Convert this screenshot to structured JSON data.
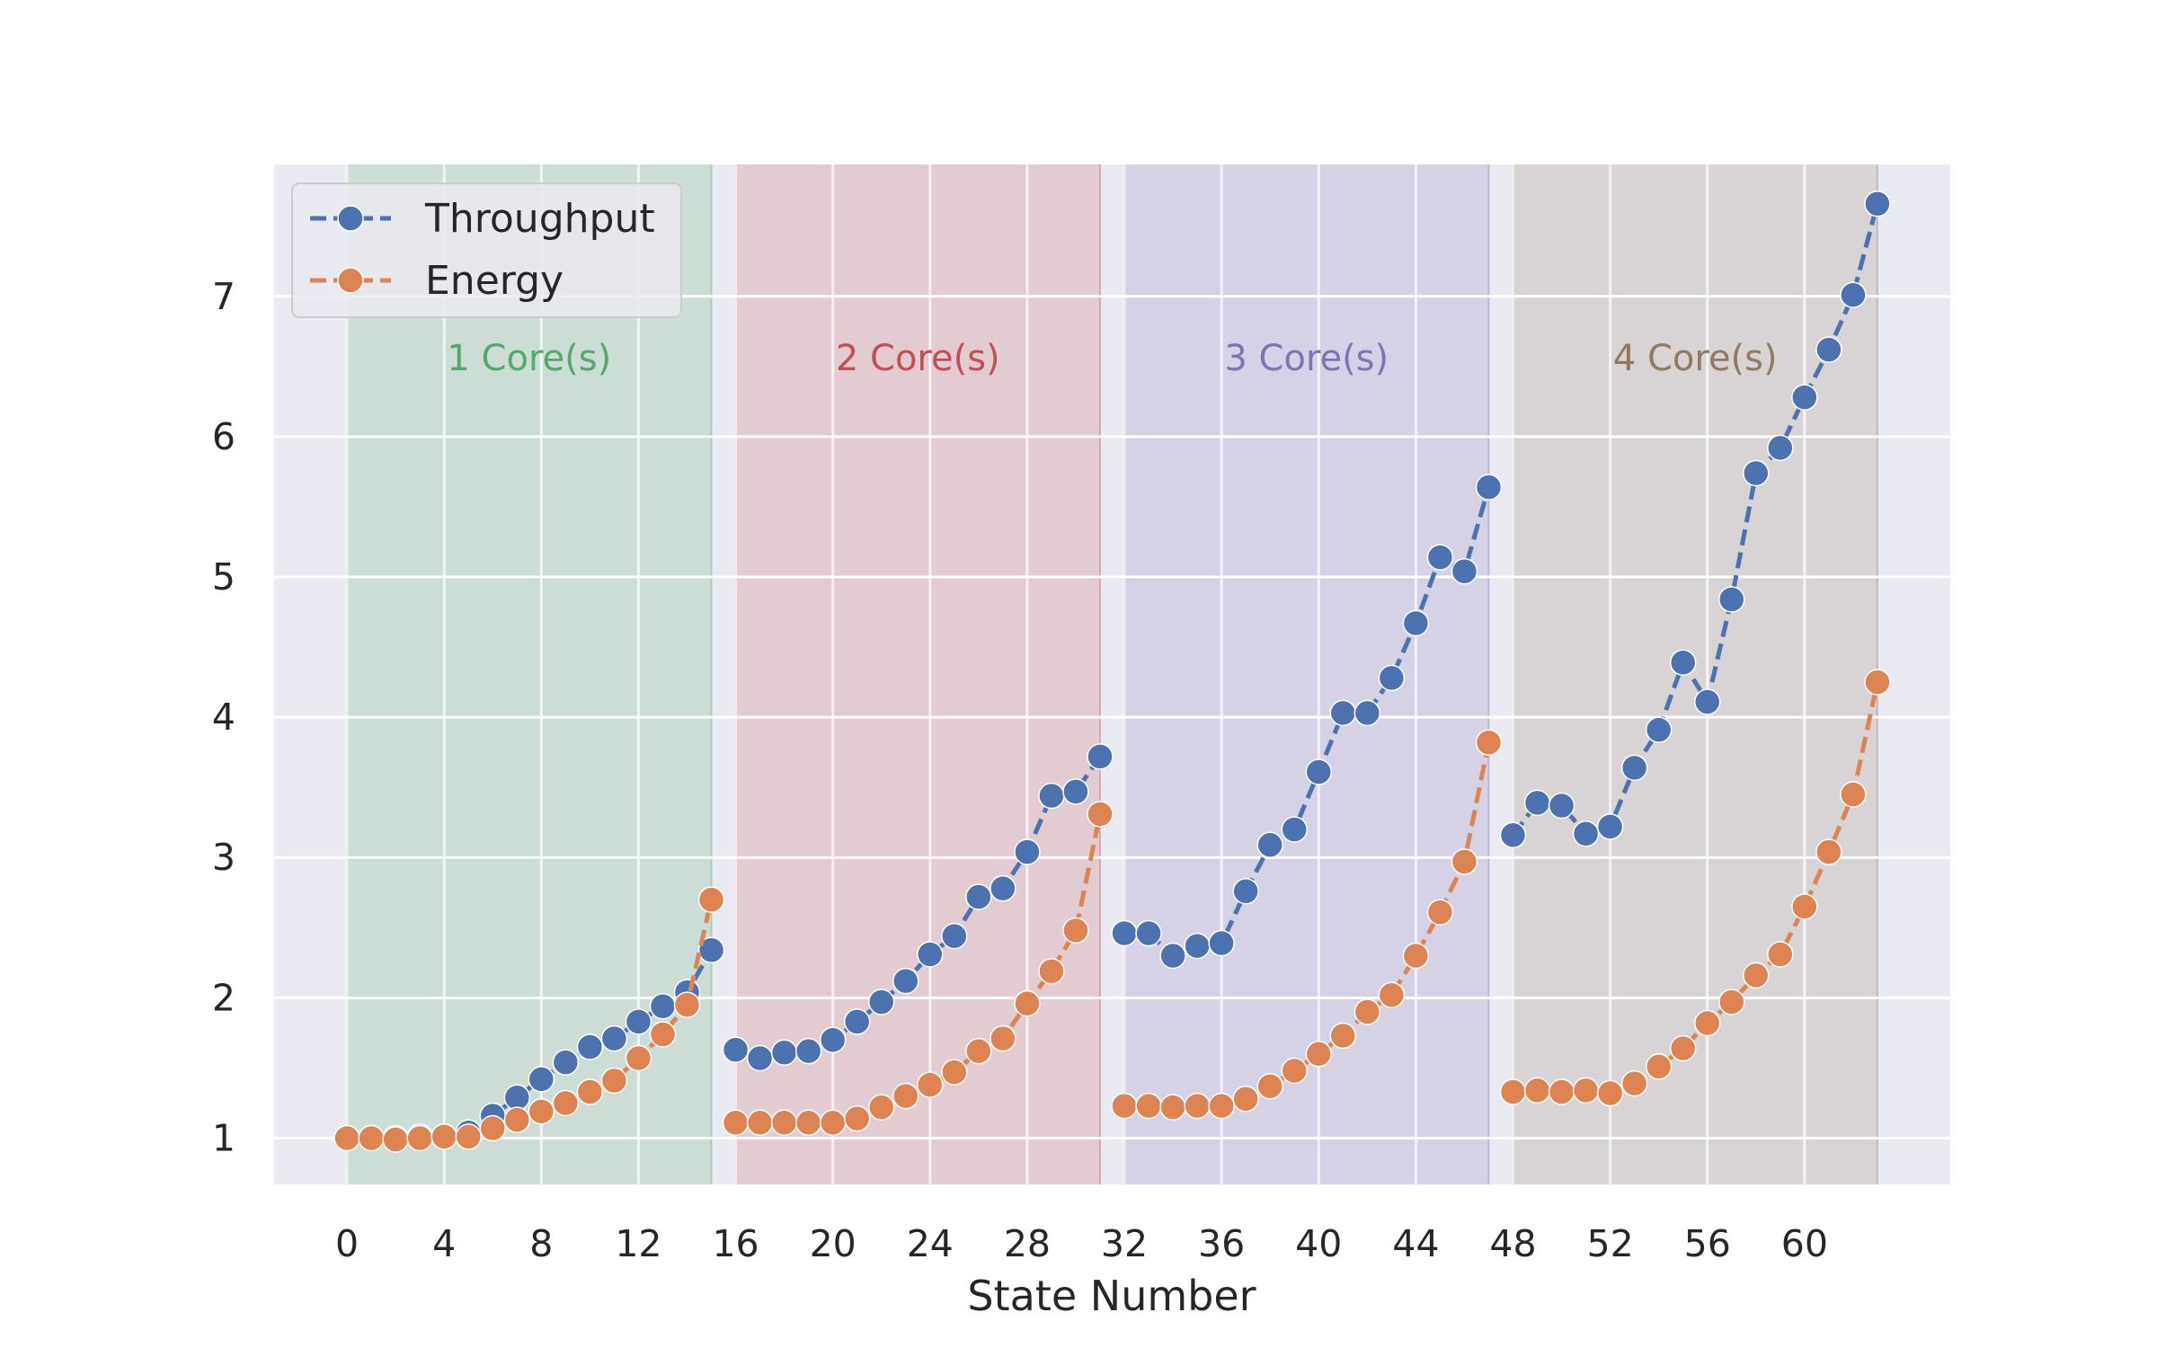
{
  "chart_data": {
    "type": "line",
    "title": "",
    "xlabel": "State Number",
    "ylabel": "",
    "xlim": [
      -3,
      66
    ],
    "ylim": [
      0.67,
      7.94
    ],
    "xticks": [
      0,
      4,
      8,
      12,
      16,
      20,
      24,
      28,
      32,
      36,
      40,
      44,
      48,
      52,
      56,
      60
    ],
    "yticks": [
      1,
      2,
      3,
      4,
      5,
      6,
      7
    ],
    "grid": true,
    "legend_position": "top-left",
    "regions": [
      {
        "label": "1 Core(s)",
        "x_start": 0,
        "x_end": 15,
        "color": "#55a868"
      },
      {
        "label": "2 Core(s)",
        "x_start": 16,
        "x_end": 31,
        "color": "#c44e52"
      },
      {
        "label": "3 Core(s)",
        "x_start": 32,
        "x_end": 47,
        "color": "#8172b3"
      },
      {
        "label": "4 Core(s)",
        "x_start": 48,
        "x_end": 63,
        "color": "#937860"
      }
    ],
    "segments": [
      [
        0,
        15
      ],
      [
        16,
        31
      ],
      [
        32,
        47
      ],
      [
        48,
        63
      ]
    ],
    "x": [
      0,
      1,
      2,
      3,
      4,
      5,
      6,
      7,
      8,
      9,
      10,
      11,
      12,
      13,
      14,
      15,
      16,
      17,
      18,
      19,
      20,
      21,
      22,
      23,
      24,
      25,
      26,
      27,
      28,
      29,
      30,
      31,
      32,
      33,
      34,
      35,
      36,
      37,
      38,
      39,
      40,
      41,
      42,
      43,
      44,
      45,
      46,
      47,
      48,
      49,
      50,
      51,
      52,
      53,
      54,
      55,
      56,
      57,
      58,
      59,
      60,
      61,
      62,
      63
    ],
    "series": [
      {
        "name": "Throughput",
        "color": "#4c72b0",
        "values": [
          1.0,
          1.0,
          1.0,
          1.01,
          1.01,
          1.04,
          1.16,
          1.29,
          1.42,
          1.54,
          1.65,
          1.71,
          1.83,
          1.94,
          2.04,
          2.34,
          1.63,
          1.57,
          1.61,
          1.62,
          1.7,
          1.83,
          1.97,
          2.12,
          2.31,
          2.44,
          2.72,
          2.78,
          3.04,
          3.44,
          3.47,
          3.72,
          2.46,
          2.46,
          2.3,
          2.37,
          2.39,
          2.76,
          3.09,
          3.2,
          3.61,
          4.03,
          4.03,
          4.28,
          4.67,
          5.14,
          5.04,
          5.64,
          3.16,
          3.39,
          3.37,
          3.17,
          3.22,
          3.64,
          3.91,
          4.39,
          4.11,
          4.84,
          5.74,
          5.92,
          6.28,
          6.62,
          7.01,
          7.66
        ]
      },
      {
        "name": "Energy",
        "color": "#dd8452",
        "values": [
          1.0,
          1.0,
          0.99,
          1.0,
          1.01,
          1.01,
          1.07,
          1.13,
          1.19,
          1.25,
          1.33,
          1.41,
          1.57,
          1.74,
          1.95,
          2.7,
          1.11,
          1.11,
          1.11,
          1.11,
          1.11,
          1.14,
          1.22,
          1.3,
          1.38,
          1.47,
          1.62,
          1.71,
          1.96,
          2.19,
          2.48,
          3.31,
          1.23,
          1.23,
          1.22,
          1.23,
          1.23,
          1.28,
          1.37,
          1.48,
          1.6,
          1.73,
          1.9,
          2.02,
          2.3,
          2.61,
          2.97,
          3.82,
          1.33,
          1.34,
          1.33,
          1.34,
          1.32,
          1.39,
          1.51,
          1.64,
          1.82,
          1.97,
          2.16,
          2.31,
          2.65,
          3.04,
          3.45,
          4.25
        ]
      }
    ]
  }
}
